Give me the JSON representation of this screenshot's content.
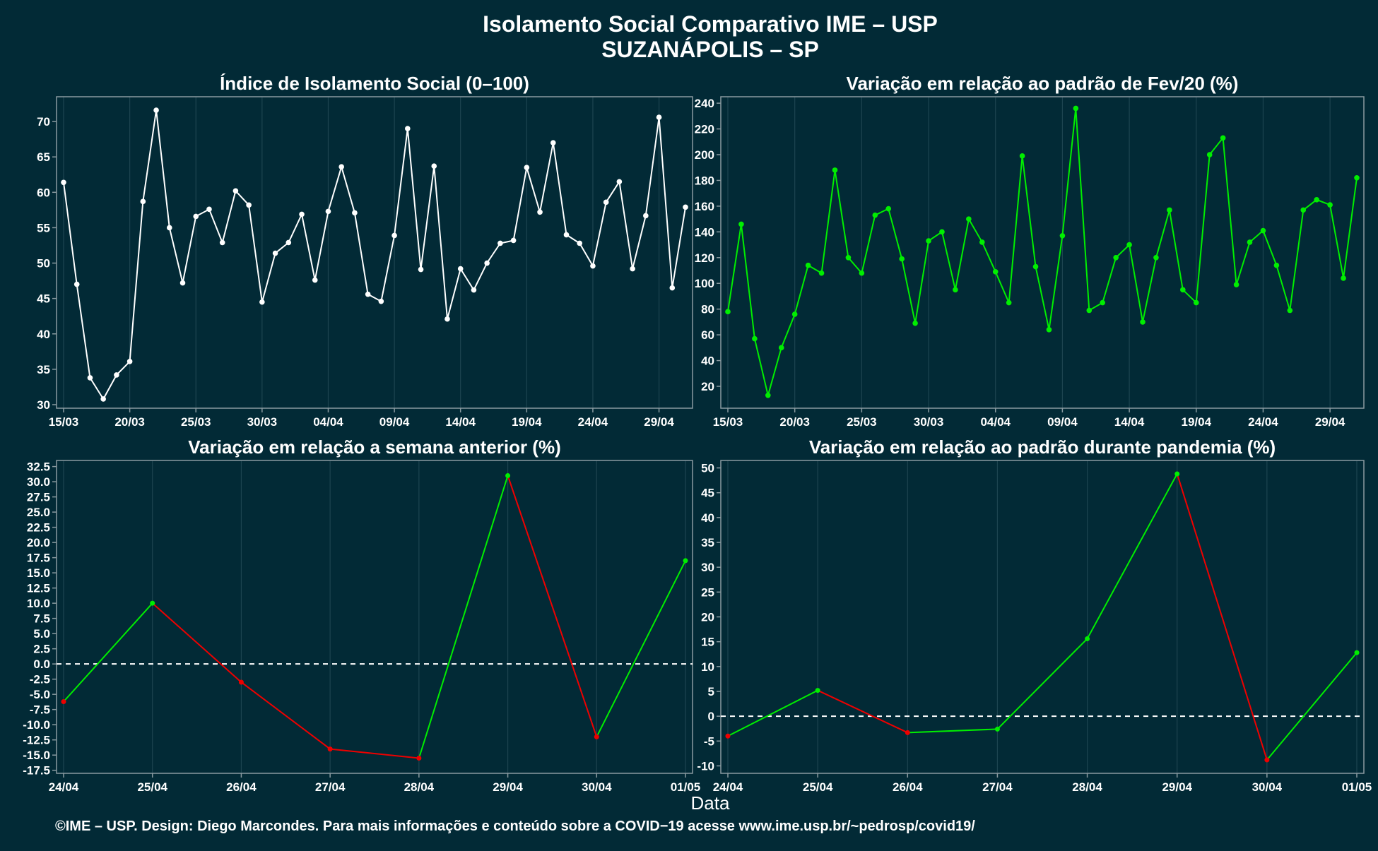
{
  "title_line1": "Isolamento Social Comparativo IME – USP",
  "title_line2": "SUZANÁPOLIS – SP",
  "xlabel": "Data",
  "footer": "©IME – USP. Design: Diego Marcondes. Para mais informações e conteúdo sobre a COVID−19 acesse www.ime.usp.br/~pedrosp/covid19/",
  "colors": {
    "background": "#022a36",
    "white_series": "#ffffff",
    "green": "#00ee00",
    "red": "#ee0000",
    "grid": "#1d4450",
    "axis": "#8a9aa0"
  },
  "chart_data": [
    {
      "type": "line",
      "title": "Índice de Isolamento Social (0–100)",
      "x": [
        "15/03",
        "16/03",
        "17/03",
        "18/03",
        "19/03",
        "20/03",
        "21/03",
        "22/03",
        "23/03",
        "24/03",
        "25/03",
        "26/03",
        "27/03",
        "28/03",
        "29/03",
        "30/03",
        "31/03",
        "01/04",
        "02/04",
        "03/04",
        "04/04",
        "05/04",
        "06/04",
        "07/04",
        "08/04",
        "09/04",
        "10/04",
        "11/04",
        "12/04",
        "13/04",
        "14/04",
        "15/04",
        "16/04",
        "17/04",
        "18/04",
        "19/04",
        "20/04",
        "21/04",
        "22/04",
        "23/04",
        "24/04",
        "25/04",
        "26/04",
        "27/04",
        "28/04",
        "29/04",
        "30/04",
        "01/05"
      ],
      "values": [
        61.4,
        47.0,
        33.8,
        30.8,
        34.2,
        36.1,
        58.7,
        71.6,
        55.0,
        47.2,
        56.6,
        57.6,
        52.9,
        60.2,
        58.2,
        44.5,
        51.4,
        52.9,
        56.9,
        47.6,
        57.3,
        63.6,
        57.1,
        45.6,
        44.6,
        53.9,
        69.0,
        49.1,
        63.7,
        42.1,
        49.2,
        46.2,
        50.0,
        52.8,
        53.2,
        63.5,
        57.2,
        67.0,
        54.0,
        52.8,
        49.6,
        58.6,
        61.5,
        49.2,
        56.7,
        70.6,
        46.5,
        57.9
      ],
      "xticks": [
        "15/03",
        "20/03",
        "25/03",
        "30/03",
        "04/04",
        "09/04",
        "14/04",
        "19/04",
        "24/04",
        "29/04"
      ],
      "yticks": [
        30,
        35,
        40,
        45,
        50,
        55,
        60,
        65,
        70
      ],
      "ylim": [
        29.5,
        73.5
      ],
      "color": "white"
    },
    {
      "type": "line",
      "title": "Variação em relação ao padrão de Fev/20 (%)",
      "x": [
        "15/03",
        "16/03",
        "17/03",
        "18/03",
        "19/03",
        "20/03",
        "21/03",
        "22/03",
        "23/03",
        "24/03",
        "25/03",
        "26/03",
        "27/03",
        "28/03",
        "29/03",
        "30/03",
        "31/03",
        "01/04",
        "02/04",
        "03/04",
        "04/04",
        "05/04",
        "06/04",
        "07/04",
        "08/04",
        "09/04",
        "10/04",
        "11/04",
        "12/04",
        "13/04",
        "14/04",
        "15/04",
        "16/04",
        "17/04",
        "18/04",
        "19/04",
        "20/04",
        "21/04",
        "22/04",
        "23/04",
        "24/04",
        "25/04",
        "26/04",
        "27/04",
        "28/04",
        "29/04",
        "30/04",
        "01/05"
      ],
      "values": [
        78,
        146,
        57,
        13,
        50,
        76,
        114,
        108,
        188,
        120,
        108,
        153,
        158,
        119,
        69,
        133,
        140,
        95,
        150,
        132,
        109,
        85,
        199,
        113,
        64,
        137,
        236,
        79,
        85,
        120,
        130,
        70,
        120,
        157,
        95,
        85,
        200,
        213,
        99,
        132,
        141,
        114,
        79,
        157,
        165,
        161,
        104,
        182
      ],
      "xticks": [
        "15/03",
        "20/03",
        "25/03",
        "30/03",
        "04/04",
        "09/04",
        "14/04",
        "19/04",
        "24/04",
        "29/04"
      ],
      "yticks": [
        20,
        40,
        60,
        80,
        100,
        120,
        140,
        160,
        180,
        200,
        220,
        240
      ],
      "ylim": [
        3,
        245
      ],
      "color": "green"
    },
    {
      "type": "line",
      "title": "Variação em relação a semana anterior (%)",
      "x": [
        "24/04",
        "25/04",
        "26/04",
        "27/04",
        "28/04",
        "29/04",
        "30/04",
        "01/05"
      ],
      "values": [
        -6.2,
        10.0,
        -3.0,
        -14.0,
        -15.5,
        31.0,
        -12.0,
        17.0
      ],
      "yticks": [
        -17.5,
        -15.0,
        -12.5,
        -10.0,
        -7.5,
        -5.0,
        -2.5,
        0.0,
        2.5,
        5.0,
        7.5,
        10.0,
        12.5,
        15.0,
        17.5,
        20.0,
        22.5,
        25.0,
        27.5,
        30.0,
        32.5
      ],
      "ylim": [
        -18,
        33.5
      ],
      "zero_line": true,
      "color": "updown"
    },
    {
      "type": "line",
      "title": "Variação em relação ao padrão durante pandemia (%)",
      "x": [
        "24/04",
        "25/04",
        "26/04",
        "27/04",
        "28/04",
        "29/04",
        "30/04",
        "01/05"
      ],
      "values": [
        -4.0,
        5.2,
        -3.3,
        -2.6,
        15.6,
        48.8,
        -8.8,
        12.8
      ],
      "yticks": [
        -10,
        -5,
        0,
        5,
        10,
        15,
        20,
        25,
        30,
        35,
        40,
        45,
        50
      ],
      "ylim": [
        -11.5,
        51.5
      ],
      "zero_line": true,
      "color": "updown"
    }
  ]
}
